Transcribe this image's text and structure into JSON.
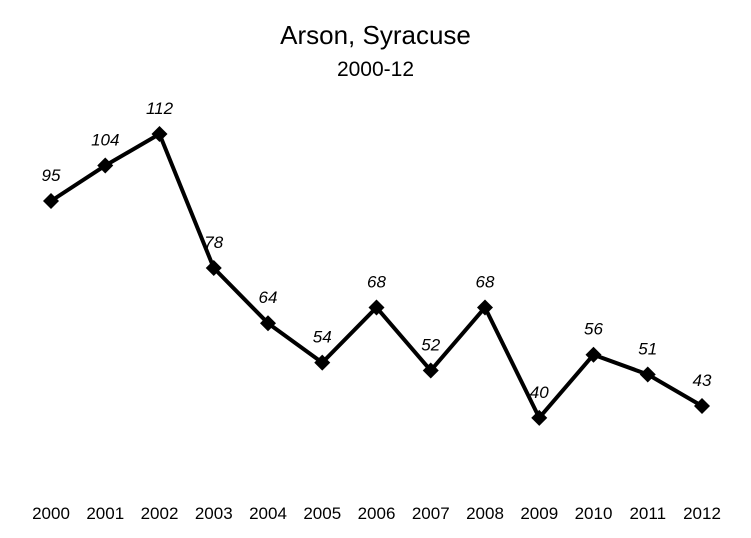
{
  "chart_data": {
    "type": "line",
    "title": "Arson, Syracuse",
    "subtitle": "2000-12",
    "xlabel": "",
    "ylabel": "",
    "categories": [
      "2000",
      "2001",
      "2002",
      "2003",
      "2004",
      "2005",
      "2006",
      "2007",
      "2008",
      "2009",
      "2010",
      "2011",
      "2012"
    ],
    "values": [
      95,
      104,
      112,
      78,
      64,
      54,
      68,
      52,
      68,
      40,
      56,
      51,
      43
    ],
    "data_labels": [
      "95",
      "104",
      "112",
      "78",
      "64",
      "54",
      "68",
      "52",
      "68",
      "40",
      "56",
      "51",
      "43"
    ],
    "ylim": [
      0,
      140
    ],
    "grid": false,
    "legend": "none",
    "marker": "diamond",
    "line_color": "#000000"
  }
}
